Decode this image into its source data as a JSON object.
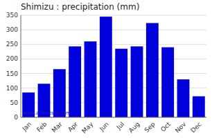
{
  "chart_data": {
    "type": "bar",
    "title": "Shimizu : precipitation (mm)",
    "categories": [
      "Jan",
      "Feb",
      "Mar",
      "Apr",
      "May",
      "Jun",
      "Jul",
      "Aug",
      "Sep",
      "Oct",
      "Nov",
      "Dec"
    ],
    "values": [
      85,
      115,
      165,
      243,
      260,
      345,
      235,
      243,
      323,
      240,
      130,
      72
    ],
    "color": "#0000DD",
    "ylim": [
      0,
      350
    ],
    "yticks": [
      0,
      50,
      100,
      150,
      200,
      250,
      300,
      350
    ],
    "grid": true,
    "annotation": "www.allmetsat.com"
  }
}
